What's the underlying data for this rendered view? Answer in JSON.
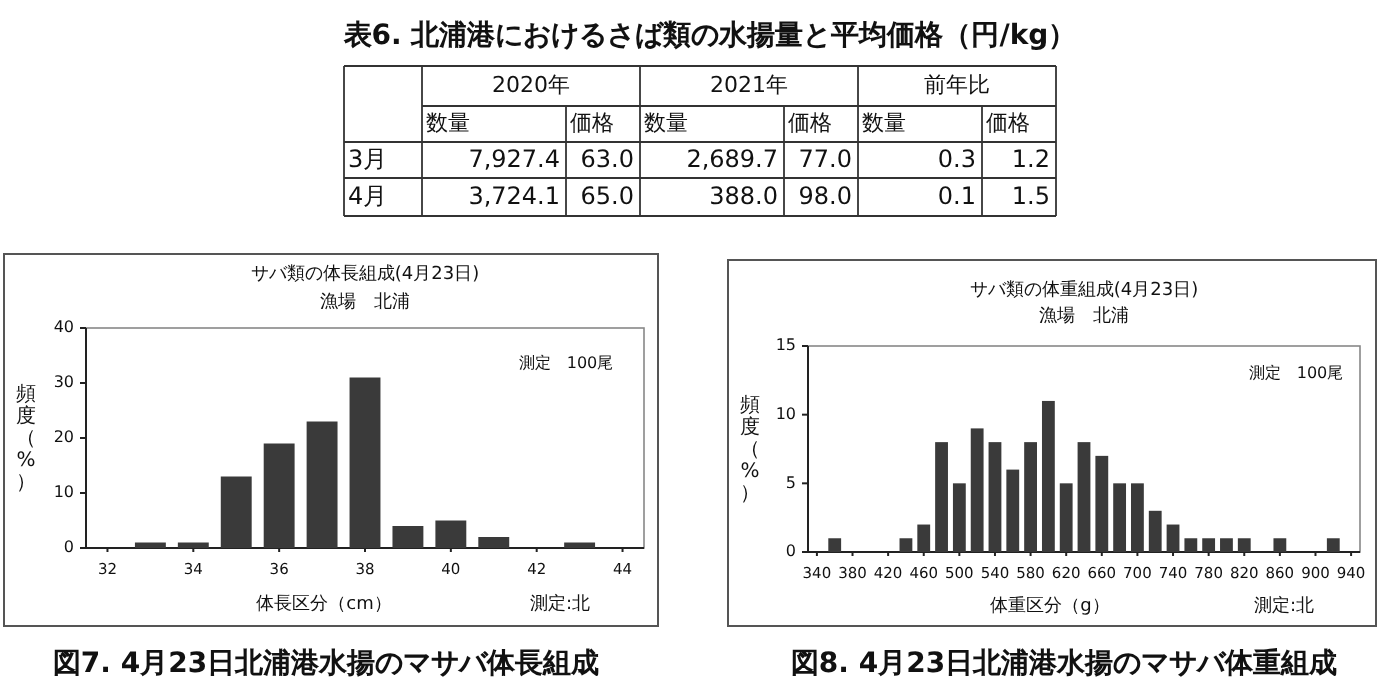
{
  "chart_data": [
    {
      "type": "other",
      "title": "表6. 北浦港におけるさば類の水揚量と平均価格（円/kg）",
      "annotations": [
        "2020年",
        "2021年",
        "前年比",
        "数量",
        "価格",
        "数量",
        "価格",
        "数量",
        "価格",
        "3月",
        "7,927.4",
        "63.0",
        "2,689.7",
        "77.0",
        "0.3",
        "1.2",
        "4月",
        "3,724.1",
        "65.0",
        "388.0",
        "98.0",
        "0.1",
        "1.5"
      ]
    },
    {
      "type": "bar",
      "title": "サバ類の体長組成(4月23日)",
      "subtitle": "漁場　北浦",
      "xlabel": "体長区分（cm）",
      "ylabel": "頻度（%）",
      "x": [
        33,
        34,
        35,
        36,
        37,
        38,
        39,
        40,
        41,
        43
      ],
      "values": [
        1,
        1,
        13,
        19,
        23,
        31,
        4,
        5,
        2,
        1
      ],
      "color": "#3a3a3a",
      "xlim": [
        31.5,
        44.5
      ],
      "xticks": [
        32,
        34,
        36,
        38,
        40,
        42,
        44
      ],
      "ylim": [
        0,
        40
      ],
      "yticks": [
        0,
        10,
        20,
        30,
        40
      ],
      "annotations": [
        "測定　100尾",
        "測定:北",
        "図7. 4月23日北浦港水揚のマサバ体長組成"
      ]
    },
    {
      "type": "bar",
      "title": "サバ類の体重組成(4月23日)",
      "subtitle": "漁場　北浦",
      "xlabel": "体重区分（g）",
      "ylabel": "頻度（%）",
      "x": [
        360,
        440,
        460,
        480,
        500,
        520,
        540,
        560,
        580,
        600,
        620,
        640,
        660,
        680,
        700,
        720,
        740,
        760,
        780,
        800,
        820,
        860,
        920
      ],
      "values": [
        1,
        1,
        2,
        8,
        5,
        9,
        8,
        6,
        8,
        11,
        5,
        8,
        7,
        5,
        5,
        3,
        2,
        1,
        1,
        1,
        1,
        1,
        1
      ],
      "color": "#3a3a3a",
      "xlim": [
        330,
        950
      ],
      "xticks": [
        340,
        380,
        420,
        460,
        500,
        540,
        580,
        620,
        660,
        700,
        740,
        780,
        820,
        860,
        900,
        940
      ],
      "ylim": [
        0,
        15
      ],
      "yticks": [
        0,
        5,
        10,
        15
      ],
      "annotations": [
        "測定　100尾",
        "測定:北",
        "図8. 4月23日北浦港水揚のマサバ体重組成"
      ]
    }
  ]
}
